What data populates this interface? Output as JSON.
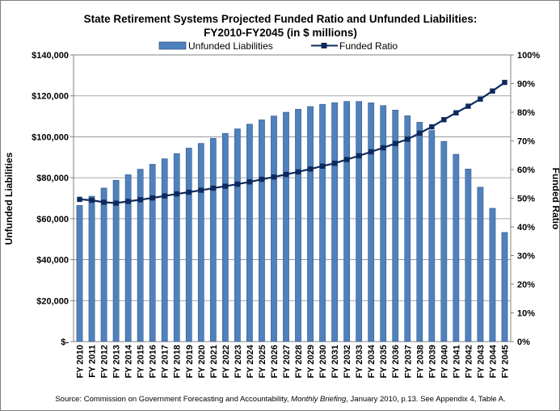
{
  "chart_data": {
    "type": "bar+line",
    "title_line1": "State Retirement Systems Projected Funded Ratio and Unfunded Liabilities:",
    "title_line2": "FY2010-FY2045 (in $ millions)",
    "ylabel_left": "Unfunded Liabilities",
    "ylabel_right": "Funded Ratio",
    "left_ticks": [
      "$-",
      "$20,000",
      "$40,000",
      "$60,000",
      "$80,000",
      "$100,000",
      "$120,000",
      "$140,000"
    ],
    "right_ticks": [
      "0%",
      "10%",
      "20%",
      "30%",
      "40%",
      "50%",
      "60%",
      "70%",
      "80%",
      "90%",
      "100%"
    ],
    "ylim_left": [
      0,
      140000
    ],
    "ylim_right": [
      0,
      100
    ],
    "legend_position": "top",
    "grid": true,
    "categories": [
      "FY 2010",
      "FY 2011",
      "FY 2012",
      "FY 2013",
      "FY 2014",
      "FY 2015",
      "FY 2016",
      "FY 2017",
      "FY 2018",
      "FY 2019",
      "FY 2020",
      "FY 2021",
      "FY 2022",
      "FY 2023",
      "FY 2024",
      "FY 2025",
      "FY 2026",
      "FY 2027",
      "FY 2028",
      "FY 2029",
      "FY 2030",
      "FY 2031",
      "FY 2032",
      "FY 2033",
      "FY 2034",
      "FY 2035",
      "FY 2036",
      "FY 2037",
      "FY 2038",
      "FY 2039",
      "FY 2040",
      "FY 2041",
      "FY 2042",
      "FY 2043",
      "FY 2044",
      "FY 2045"
    ],
    "series": [
      {
        "name": "Unfunded Liabilities",
        "kind": "bar",
        "axis": "left",
        "color": "#4f81bd",
        "values": [
          66500,
          71000,
          75000,
          78800,
          81500,
          84200,
          86600,
          89300,
          91800,
          94500,
          96800,
          99300,
          101700,
          103900,
          106200,
          108300,
          110200,
          112000,
          113500,
          114800,
          115900,
          116700,
          117300,
          117300,
          116600,
          115300,
          113100,
          110300,
          107100,
          103100,
          97800,
          91500,
          84300,
          75400,
          65100,
          53300
        ]
      },
      {
        "name": "Funded Ratio",
        "kind": "line",
        "axis": "right",
        "color": "#0c2a5e",
        "values": [
          49.6,
          49.3,
          48.6,
          48.3,
          48.9,
          49.5,
          50.1,
          50.8,
          51.5,
          52.1,
          52.8,
          53.5,
          54.2,
          54.9,
          55.7,
          56.6,
          57.4,
          58.3,
          59.2,
          60.2,
          61.2,
          62.2,
          63.5,
          64.8,
          66.2,
          67.6,
          69.1,
          70.6,
          72.7,
          74.9,
          77.4,
          79.8,
          82.1,
          84.6,
          87.4,
          90.4
        ]
      }
    ],
    "source_prefix": "Source: Commission on Government Forecasting and Accountability, ",
    "source_italic": "Monthly Briefing",
    "source_suffix": ", January 2010, p.13. See Appendix 4, Table A."
  }
}
